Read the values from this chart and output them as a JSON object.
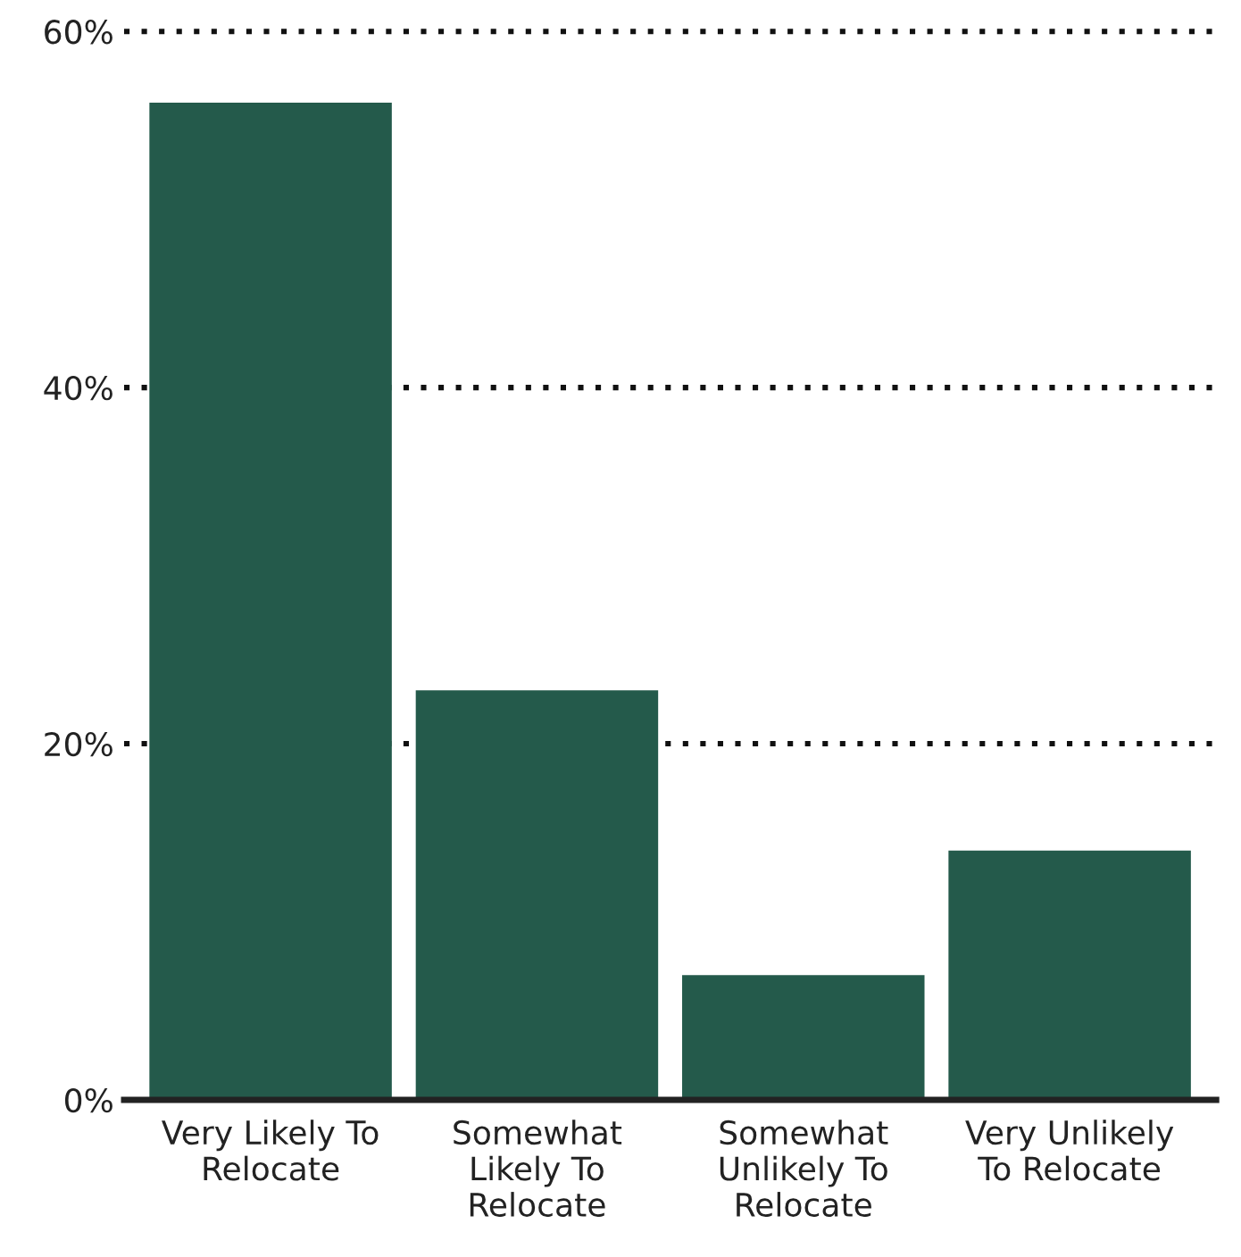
{
  "chart_data": {
    "type": "bar",
    "categories": [
      "Very Likely To\nRelocate",
      "Somewhat\nLikely To\nRelocate",
      "Somewhat\nUnlikely To\nRelocate",
      "Very Unlikely\nTo Relocate"
    ],
    "values": [
      56,
      23,
      7,
      14
    ],
    "color": "#245a4b",
    "ylim": [
      0,
      60
    ],
    "yticks": [
      {
        "value": 0,
        "label": "0%"
      },
      {
        "value": 20,
        "label": "20%"
      },
      {
        "value": 40,
        "label": "40%"
      },
      {
        "value": 60,
        "label": "60%"
      }
    ],
    "grid": "y",
    "legend": false
  }
}
